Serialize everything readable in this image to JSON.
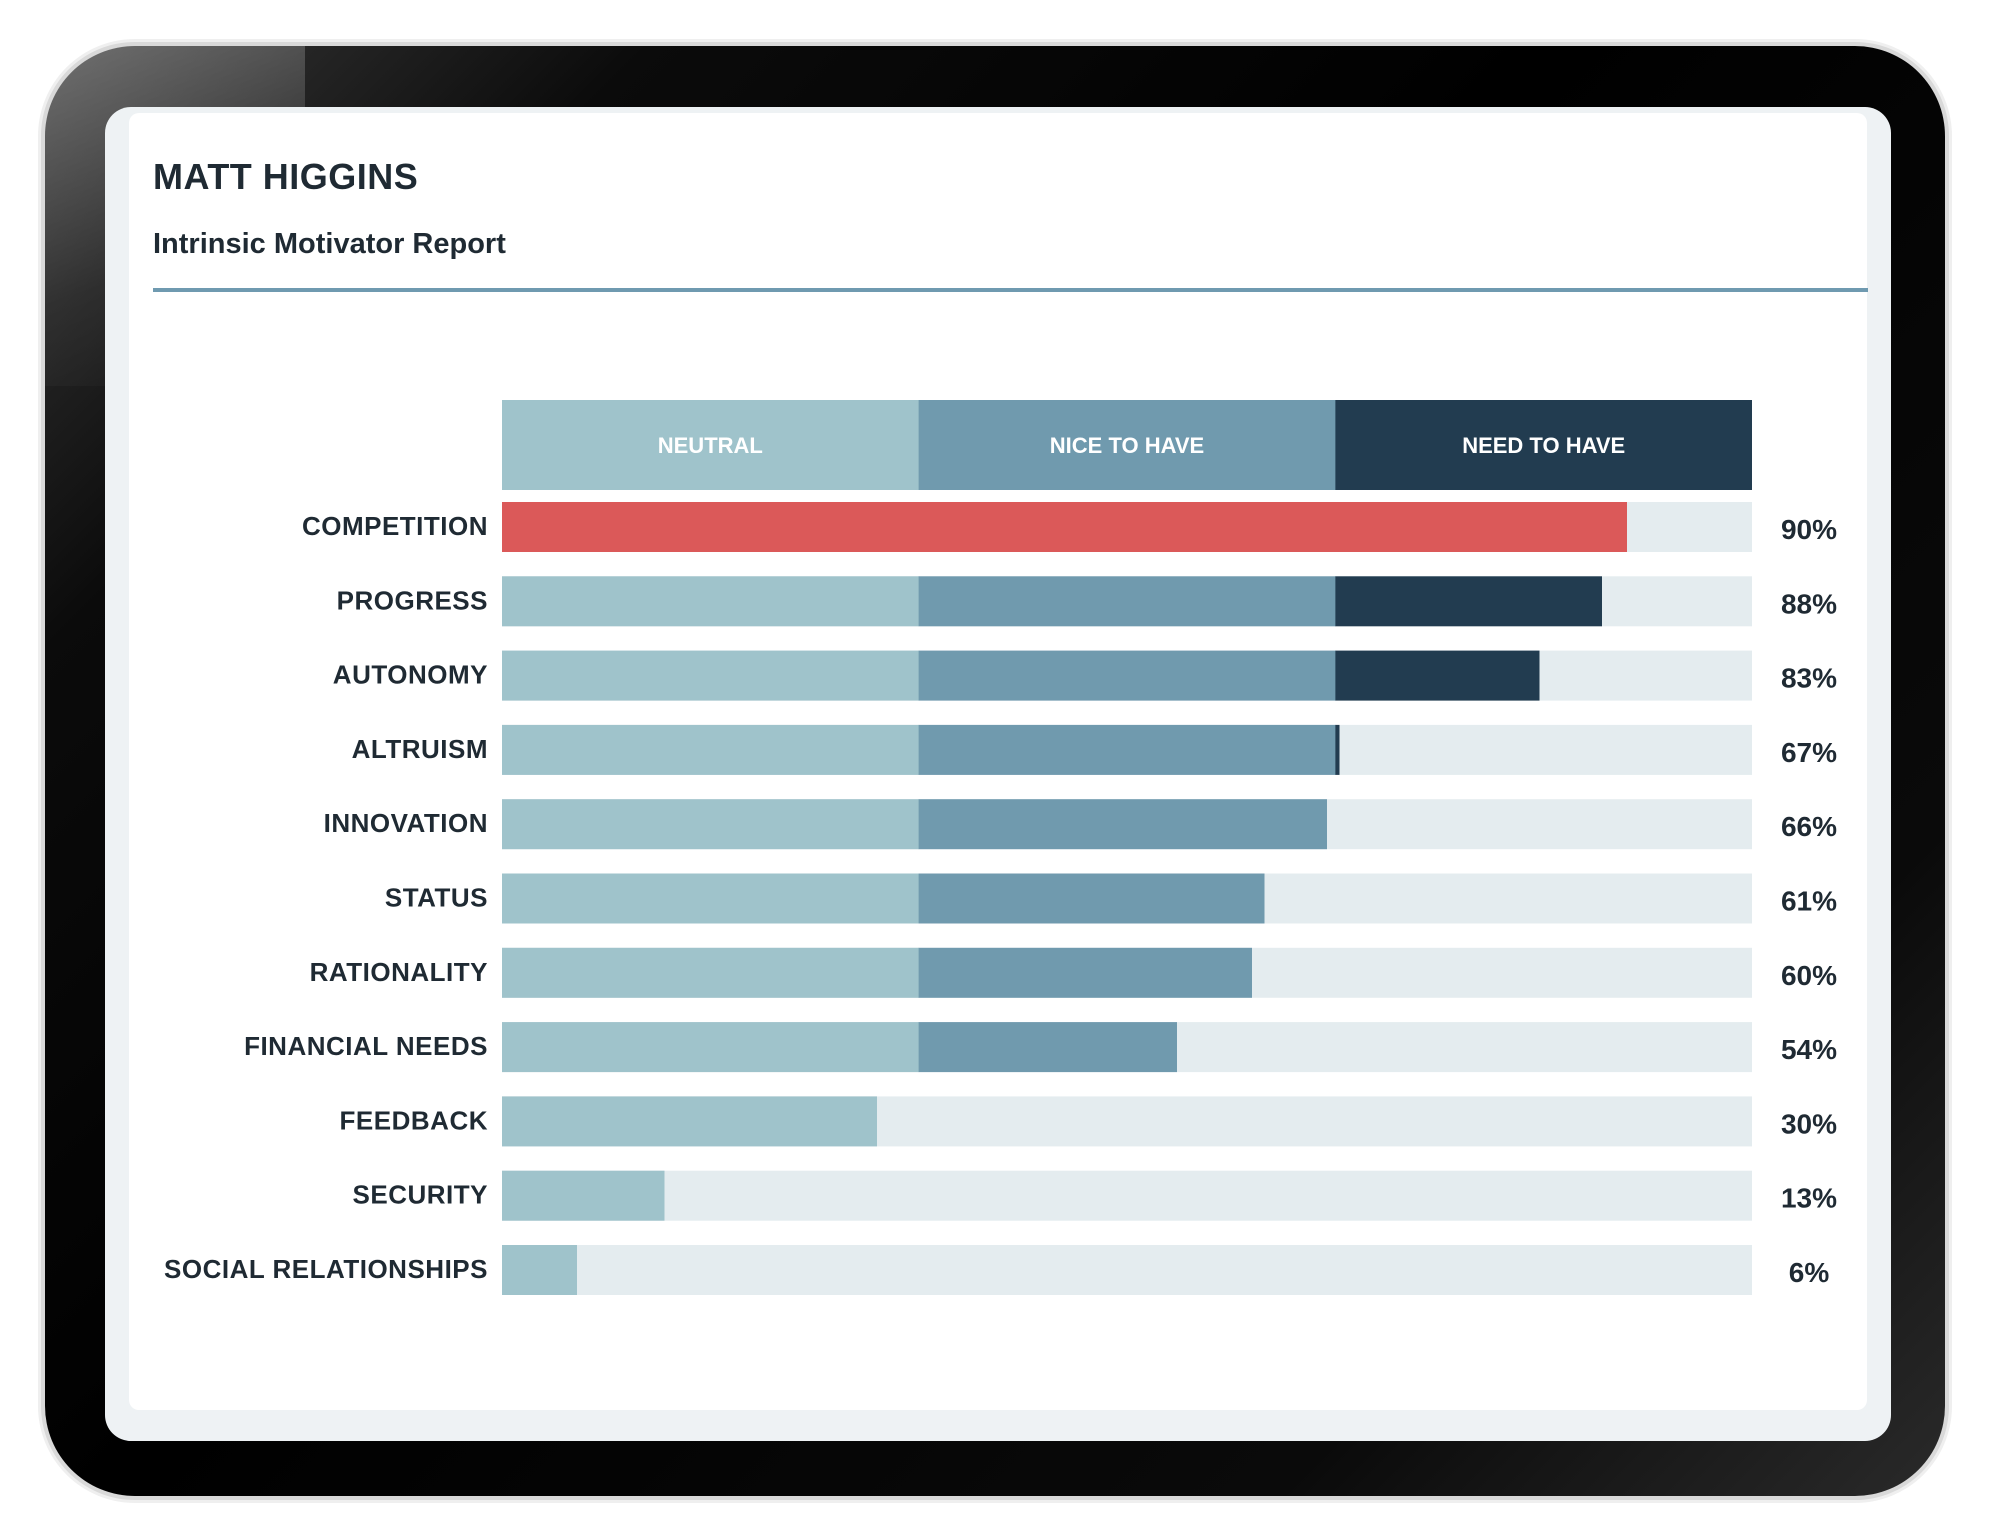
{
  "header": {
    "name": "MATT HIGGINS",
    "subtitle": "Intrinsic Motivator Report"
  },
  "colors": {
    "neutral": "#9fc3cb",
    "nice_to_have": "#709aae",
    "need_to_have": "#223c50",
    "highlight": "#db5959",
    "track": "#e4ecef",
    "label": "#1f2a33",
    "band_text": "#ffffff"
  },
  "chart_data": {
    "type": "bar",
    "orientation": "horizontal",
    "stacked": true,
    "xlim": [
      0,
      100
    ],
    "bands": [
      {
        "label": "NEUTRAL",
        "from": 0,
        "to": 33.33
      },
      {
        "label": "NICE TO HAVE",
        "from": 33.33,
        "to": 66.67
      },
      {
        "label": "NEED TO HAVE",
        "from": 66.67,
        "to": 100
      }
    ],
    "categories": [
      "COMPETITION",
      "PROGRESS",
      "AUTONOMY",
      "ALTRUISM",
      "INNOVATION",
      "STATUS",
      "RATIONALITY",
      "FINANCIAL NEEDS",
      "FEEDBACK",
      "SECURITY",
      "SOCIAL RELATIONSHIPS"
    ],
    "values": [
      90,
      88,
      83,
      67,
      66,
      61,
      60,
      54,
      30,
      13,
      6
    ],
    "value_labels": [
      "90%",
      "88%",
      "83%",
      "67%",
      "66%",
      "61%",
      "60%",
      "54%",
      "30%",
      "13%",
      "6%"
    ],
    "highlighted": [
      "COMPETITION"
    ]
  }
}
